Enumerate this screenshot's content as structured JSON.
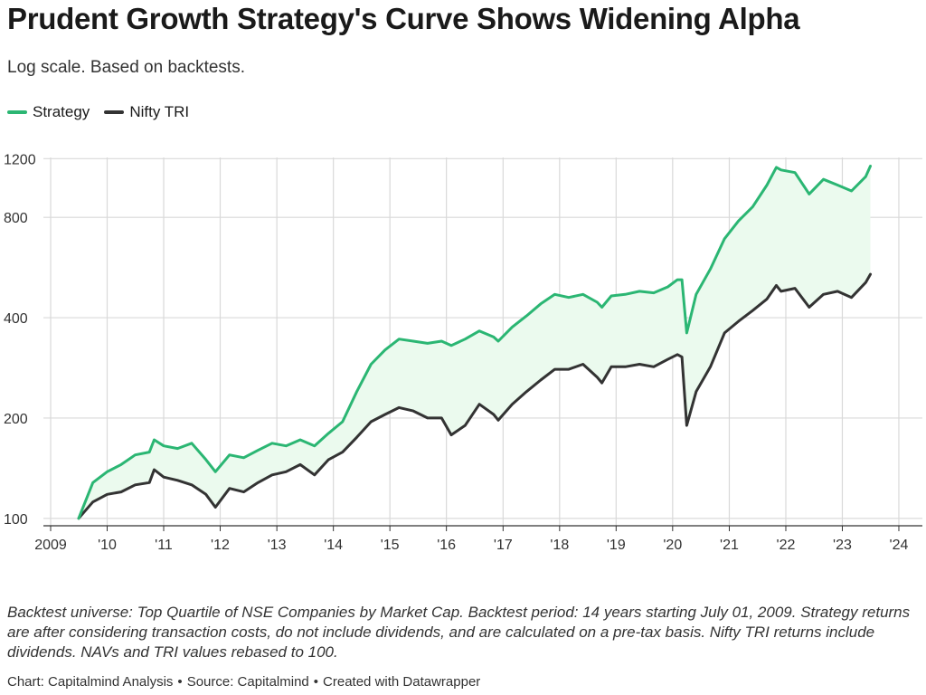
{
  "header": {
    "title": "Prudent Growth Strategy's Curve Shows Widening Alpha",
    "subtitle": "Log scale. Based on backtests."
  },
  "colors": {
    "strategy": "#2bb673",
    "nifty": "#333333",
    "fill": "#ebfaee",
    "grid": "#d9d9d9"
  },
  "chart_data": {
    "type": "line",
    "y_scale": "log",
    "xlim": [
      "2009-01-01",
      "2024-06-01"
    ],
    "ylim": [
      95,
      1210
    ],
    "x_tick_labels": [
      "2009",
      "'10",
      "'11",
      "'12",
      "'13",
      "'14",
      "'15",
      "'16",
      "'17",
      "'18",
      "'19",
      "'20",
      "'21",
      "'22",
      "'23",
      "'24"
    ],
    "y_ticks": [
      100,
      200,
      400,
      800,
      1200
    ],
    "grid": true,
    "legend_position": "top-left",
    "area_between_series": true,
    "x": [
      "2009-07",
      "2009-10",
      "2010-01",
      "2010-04",
      "2010-07",
      "2010-10",
      "2010-11",
      "2011-01",
      "2011-04",
      "2011-07",
      "2011-10",
      "2011-12",
      "2012-03",
      "2012-06",
      "2012-09",
      "2012-12",
      "2013-03",
      "2013-06",
      "2013-09",
      "2013-12",
      "2014-03",
      "2014-06",
      "2014-09",
      "2014-12",
      "2015-03",
      "2015-06",
      "2015-09",
      "2015-12",
      "2016-02",
      "2016-05",
      "2016-08",
      "2016-11",
      "2016-12",
      "2017-03",
      "2017-06",
      "2017-09",
      "2017-12",
      "2018-03",
      "2018-06",
      "2018-09",
      "2018-10",
      "2018-12",
      "2019-03",
      "2019-06",
      "2019-09",
      "2019-12",
      "2020-02",
      "2020-03",
      "2020-04",
      "2020-06",
      "2020-09",
      "2020-12",
      "2021-03",
      "2021-06",
      "2021-09",
      "2021-11",
      "2021-12",
      "2022-03",
      "2022-06",
      "2022-09",
      "2022-12",
      "2023-03",
      "2023-06",
      "2023-07"
    ],
    "series": [
      {
        "name": "Strategy",
        "values": [
          100,
          128,
          138,
          145,
          155,
          158,
          172,
          165,
          162,
          168,
          150,
          138,
          155,
          152,
          160,
          168,
          165,
          172,
          165,
          180,
          195,
          240,
          290,
          320,
          345,
          340,
          335,
          340,
          330,
          345,
          365,
          350,
          340,
          375,
          405,
          440,
          470,
          460,
          470,
          445,
          430,
          465,
          470,
          480,
          475,
          495,
          520,
          520,
          360,
          470,
          560,
          690,
          780,
          860,
          1000,
          1130,
          1110,
          1090,
          940,
          1040,
          1000,
          960,
          1060,
          1140
        ]
      },
      {
        "name": "Nifty TRI",
        "values": [
          100,
          112,
          118,
          120,
          126,
          128,
          140,
          133,
          130,
          126,
          118,
          108,
          123,
          120,
          128,
          135,
          138,
          145,
          135,
          150,
          158,
          175,
          195,
          205,
          215,
          210,
          200,
          200,
          178,
          190,
          220,
          205,
          197,
          220,
          240,
          260,
          280,
          280,
          290,
          265,
          255,
          285,
          285,
          290,
          285,
          300,
          310,
          305,
          190,
          240,
          285,
          360,
          390,
          420,
          455,
          500,
          480,
          490,
          430,
          470,
          480,
          460,
          510,
          540
        ]
      }
    ]
  },
  "notes": "Backtest universe: Top Quartile of NSE Companies by Market Cap. Backtest period: 14 years starting July 01, 2009. Strategy returns are after considering transaction costs, do not include dividends, and are calculated on a pre-tax basis. Nifty TRI returns include dividends. NAVs and TRI values rebased to 100.",
  "byline": {
    "chart": "Chart: Capitalmind Analysis",
    "source": "Source: Capitalmind",
    "created": "Created with Datawrapper",
    "separator": "•"
  }
}
